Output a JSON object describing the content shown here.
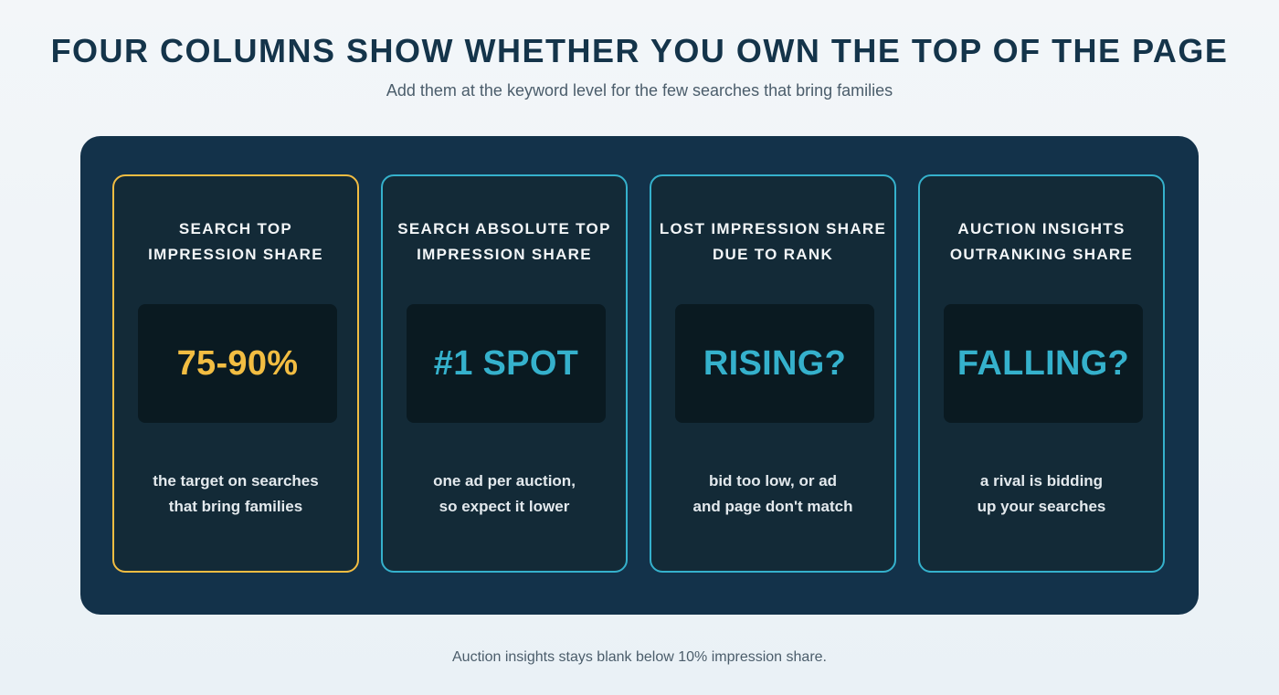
{
  "header": {
    "title": "FOUR COLUMNS SHOW WHETHER YOU OWN THE TOP OF THE PAGE",
    "subtitle": "Add them at the keyword level for the few searches that bring families"
  },
  "cards": [
    {
      "heading": "SEARCH TOP\nIMPRESSION SHARE",
      "value": "75-90%",
      "note": "the target on searches\nthat bring families",
      "highlighted": true
    },
    {
      "heading": "SEARCH ABSOLUTE TOP\nIMPRESSION SHARE",
      "value": "#1 SPOT",
      "note": "one ad per auction,\nso expect it lower",
      "highlighted": false
    },
    {
      "heading": "LOST IMPRESSION SHARE\nDUE TO RANK",
      "value": "RISING?",
      "note": "bid too low, or ad\nand page don't match",
      "highlighted": false
    },
    {
      "heading": "AUCTION INSIGHTS\nOUTRANKING SHARE",
      "value": "FALLING?",
      "note": "a rival is bidding\nup your searches",
      "highlighted": false
    }
  ],
  "footer": {
    "note": "Auction insights stays blank below 10% impression share."
  },
  "colors": {
    "page_background": "#eef3f7",
    "title": "#14344a",
    "panel": "#13324a",
    "card_background": "#132a37",
    "value_box": "#0a1a21",
    "accent_teal": "#35b1cc",
    "accent_gold": "#f2bd42"
  }
}
